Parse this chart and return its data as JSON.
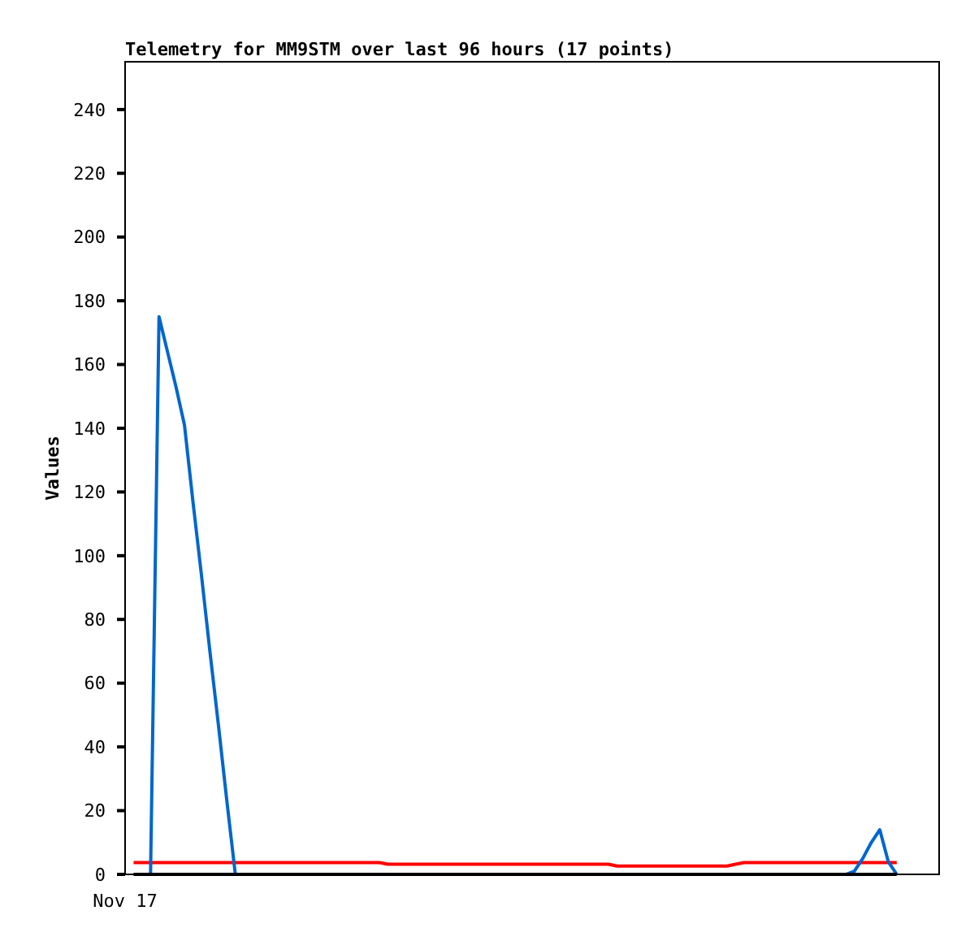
{
  "chart_data": {
    "type": "line",
    "title": "Telemetry for MM9STM over last 96 hours (17 points)",
    "ylabel": "Values",
    "categories": [
      "Nov 17",
      null,
      null,
      null,
      null,
      null,
      null,
      null,
      null,
      null,
      null,
      null,
      null,
      null,
      null,
      null,
      null,
      null,
      null,
      null,
      null,
      null,
      null,
      null,
      null,
      null,
      null,
      null,
      null,
      null,
      null,
      null,
      null,
      null,
      null,
      null,
      null,
      null,
      null,
      null,
      null,
      null,
      null,
      null,
      null,
      null,
      null,
      null,
      null,
      null,
      null,
      null,
      null,
      null,
      null,
      null,
      null,
      null,
      null,
      null,
      null,
      null,
      null,
      null,
      null,
      null,
      null,
      null,
      null,
      null,
      null,
      null,
      null,
      null,
      null,
      null,
      null,
      null,
      null,
      null,
      null,
      null,
      null,
      null,
      null,
      null,
      null,
      null,
      null,
      null,
      null,
      null,
      null,
      null,
      null,
      null,
      null
    ],
    "ylim": [
      0,
      255
    ],
    "yticks": [
      0,
      20,
      40,
      60,
      80,
      100,
      120,
      140,
      160,
      180,
      200,
      220,
      240
    ],
    "line_style": "solid",
    "series": [
      {
        "color": "#ff0000",
        "values": [
          null,
          3.7,
          3.7,
          3.7,
          3.7,
          3.7,
          3.7,
          3.7,
          3.7,
          3.7,
          3.7,
          3.7,
          3.7,
          3.7,
          3.7,
          3.7,
          3.7,
          3.7,
          3.7,
          3.7,
          3.7,
          3.7,
          3.7,
          3.7,
          3.7,
          3.7,
          3.7,
          3.7,
          3.7,
          3.7,
          3.7,
          3.2,
          3.2,
          3.2,
          3.2,
          3.2,
          3.2,
          3.2,
          3.2,
          3.2,
          3.2,
          3.2,
          3.2,
          3.2,
          3.2,
          3.2,
          3.2,
          3.2,
          3.2,
          3.2,
          3.2,
          3.2,
          3.2,
          3.2,
          3.2,
          3.2,
          3.2,
          3.2,
          2.6,
          2.6,
          2.6,
          2.6,
          2.6,
          2.6,
          2.6,
          2.6,
          2.6,
          2.6,
          2.6,
          2.6,
          2.6,
          2.6,
          3.2,
          3.7,
          3.7,
          3.7,
          3.7,
          3.7,
          3.7,
          3.7,
          3.7,
          3.7,
          3.7,
          3.7,
          3.7,
          3.7,
          3.7,
          3.7,
          3.7,
          3.7,
          3.7,
          3.7,
          null,
          null,
          null,
          null,
          null
        ]
      },
      {
        "color": "#0066cc",
        "values": [
          null,
          null,
          null,
          0,
          175,
          164,
          153,
          141,
          117,
          94,
          70,
          47,
          23,
          0,
          null,
          null,
          null,
          null,
          null,
          null,
          null,
          null,
          null,
          null,
          null,
          null,
          null,
          null,
          null,
          null,
          null,
          null,
          null,
          null,
          null,
          null,
          null,
          null,
          null,
          null,
          null,
          null,
          null,
          null,
          null,
          null,
          null,
          null,
          null,
          null,
          null,
          null,
          null,
          null,
          null,
          null,
          null,
          null,
          null,
          null,
          null,
          null,
          null,
          null,
          null,
          null,
          null,
          null,
          null,
          null,
          null,
          null,
          null,
          null,
          null,
          null,
          null,
          null,
          null,
          null,
          null,
          null,
          null,
          null,
          null,
          0,
          1,
          5,
          10,
          14,
          4,
          0,
          null,
          null,
          null,
          null,
          null
        ]
      },
      {
        "color": "#000000",
        "values": [
          null,
          0,
          0,
          0,
          0,
          0,
          0,
          0,
          0,
          0,
          0,
          0,
          0,
          0,
          0,
          0,
          0,
          0,
          0,
          0,
          0,
          0,
          0,
          0,
          0,
          0,
          0,
          0,
          0,
          0,
          0,
          0,
          0,
          0,
          0,
          0,
          0,
          0,
          0,
          0,
          0,
          0,
          0,
          0,
          0,
          0,
          0,
          0,
          0,
          0,
          0,
          0,
          0,
          0,
          0,
          0,
          0,
          0,
          0,
          0,
          0,
          0,
          0,
          0,
          0,
          0,
          0,
          0,
          0,
          0,
          0,
          0,
          0,
          0,
          0,
          0,
          0,
          0,
          0,
          0,
          0,
          0,
          0,
          0,
          0,
          0,
          0,
          0,
          0,
          0,
          0,
          0,
          null,
          null,
          null,
          null,
          null
        ]
      }
    ]
  }
}
